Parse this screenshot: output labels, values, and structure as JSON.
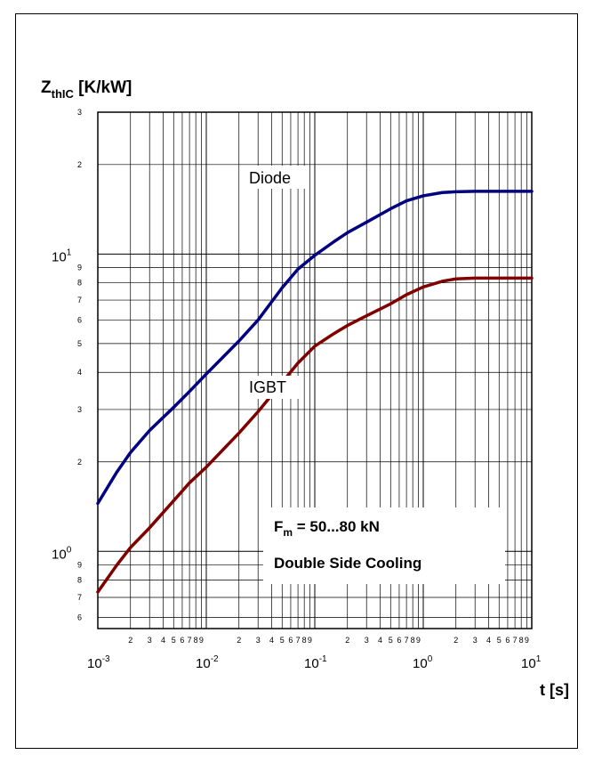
{
  "chart_data": {
    "type": "line",
    "x_scale": "log",
    "y_scale": "log",
    "xlim": [
      0.001,
      10
    ],
    "ylim": [
      0.55,
      30
    ],
    "grid": true,
    "ylabel": {
      "main": "Z",
      "sub": "thIC",
      "unit": " [K/kW]"
    },
    "xlabel": "t [s]",
    "x_decades": [
      {
        "base": "10",
        "exp": "-3",
        "value": 0.001
      },
      {
        "base": "10",
        "exp": "-2",
        "value": 0.01
      },
      {
        "base": "10",
        "exp": "-1",
        "value": 0.1
      },
      {
        "base": "10",
        "exp": "0",
        "value": 1
      },
      {
        "base": "10",
        "exp": "1",
        "value": 10
      }
    ],
    "y_decades": [
      {
        "base": "10",
        "exp": "0",
        "value": 1
      },
      {
        "base": "10",
        "exp": "1",
        "value": 10
      }
    ],
    "minor_tick_labels": [
      "2",
      "3",
      "4",
      "5",
      "6",
      "7",
      "8",
      "9"
    ],
    "series": [
      {
        "name": "Diode",
        "color": "#000080",
        "x": [
          0.001,
          0.0015,
          0.002,
          0.003,
          0.005,
          0.007,
          0.01,
          0.02,
          0.03,
          0.05,
          0.07,
          0.1,
          0.15,
          0.2,
          0.3,
          0.5,
          0.7,
          1,
          1.5,
          2,
          3,
          5,
          10
        ],
        "y": [
          1.45,
          1.85,
          2.15,
          2.55,
          3.05,
          3.45,
          3.95,
          5.1,
          6.0,
          7.7,
          8.9,
          9.9,
          11.0,
          11.8,
          12.8,
          14.2,
          15.1,
          15.7,
          16.1,
          16.2,
          16.25,
          16.25,
          16.25
        ]
      },
      {
        "name": "IGBT",
        "color": "#800000",
        "x": [
          0.001,
          0.0015,
          0.002,
          0.003,
          0.005,
          0.007,
          0.01,
          0.02,
          0.03,
          0.05,
          0.07,
          0.1,
          0.15,
          0.2,
          0.3,
          0.5,
          0.7,
          1,
          1.5,
          2,
          3,
          5,
          10
        ],
        "y": [
          0.73,
          0.9,
          1.03,
          1.2,
          1.48,
          1.7,
          1.92,
          2.5,
          2.95,
          3.7,
          4.3,
          4.9,
          5.4,
          5.75,
          6.2,
          6.8,
          7.3,
          7.75,
          8.1,
          8.25,
          8.3,
          8.3,
          8.3
        ]
      }
    ],
    "annotation": {
      "force_main": "F",
      "force_sub": "m",
      "force_value": " = 50...80 kN",
      "cooling": "Double Side Cooling"
    }
  }
}
